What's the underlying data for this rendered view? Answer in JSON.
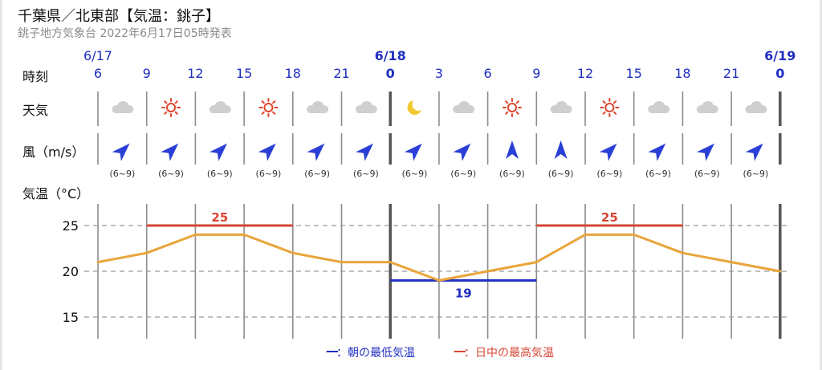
{
  "header": {
    "title": "千葉県／北東部【気温：銚子】",
    "subtitle": "銚子地方気象台 2022年6月17日05時発表"
  },
  "row_labels": {
    "time": "時刻",
    "weather": "天気",
    "wind": "風（m/s）",
    "temp": "気温（°C）"
  },
  "dates": [
    "6/17",
    "6/18",
    "6/19"
  ],
  "hours": [
    "6",
    "9",
    "12",
    "15",
    "18",
    "21",
    "0",
    "3",
    "6",
    "9",
    "12",
    "15",
    "18",
    "21",
    "0"
  ],
  "weather": [
    "cloudy",
    "sunny",
    "cloudy",
    "sunny",
    "cloudy",
    "cloudy",
    "clear-night",
    "cloudy",
    "sunny",
    "cloudy",
    "sunny",
    "cloudy",
    "cloudy",
    "cloudy"
  ],
  "wind": {
    "directions": [
      "SW",
      "SW",
      "SW",
      "SW",
      "SW",
      "SW",
      "SW",
      "SW",
      "S",
      "S",
      "SW",
      "SW",
      "SW",
      "SW"
    ],
    "speeds": [
      "(6~9)",
      "(6~9)",
      "(6~9)",
      "(6~9)",
      "(6~9)",
      "(6~9)",
      "(6~9)",
      "(6~9)",
      "(6~9)",
      "(6~9)",
      "(6~9)",
      "(6~9)",
      "(6~9)",
      "(6~9)"
    ]
  },
  "legend": {
    "min": "ー：朝の最低気温",
    "max": "ー：日中の最高気温"
  },
  "colors": {
    "temp_line": "#e8a53a",
    "max_line": "#d64533",
    "min_line": "#1f2fbf",
    "date_text": "#1f2fbf",
    "sun": "#e0432a",
    "cloud": "#cfcfcf",
    "moon": "#f2c832",
    "arrow": "#2a3fd6"
  },
  "chart_data": {
    "type": "line",
    "ylabel": "気温（°C）",
    "yticks": [
      15,
      20,
      25
    ],
    "ylim": [
      12.5,
      27.5
    ],
    "x": [
      "6/17 6",
      "9",
      "12",
      "15",
      "18",
      "21",
      "6/18 0",
      "3",
      "6",
      "9",
      "12",
      "15",
      "18",
      "21",
      "6/19 0"
    ],
    "series": [
      {
        "values": [
          21,
          22,
          24,
          24,
          22,
          21,
          21,
          19,
          20,
          21,
          24,
          24,
          22,
          21,
          20
        ]
      }
    ],
    "daily_max": [
      {
        "label": "25",
        "value": 25,
        "from": "6/17 9",
        "to": "6/17 18"
      },
      {
        "label": "25",
        "value": 25,
        "from": "6/18 9",
        "to": "6/18 18"
      }
    ],
    "morning_min": [
      {
        "label": "19",
        "value": 19,
        "from": "6/18 0",
        "to": "6/18 9"
      }
    ],
    "grid": true
  }
}
